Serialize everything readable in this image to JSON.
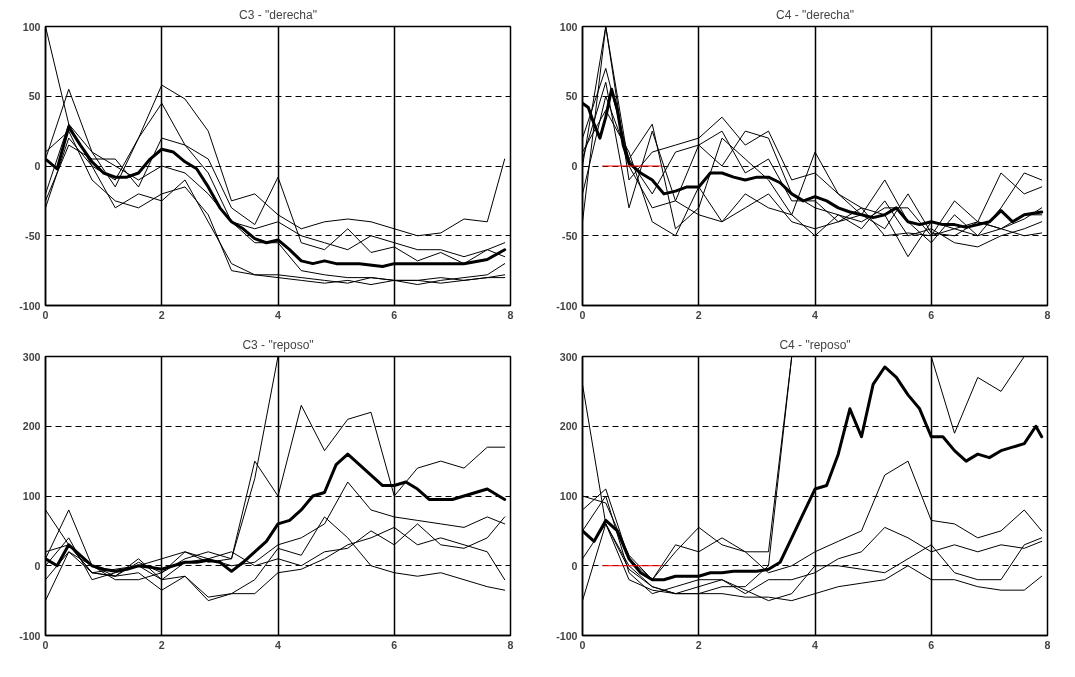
{
  "chart_data": [
    {
      "type": "line",
      "title": "C3 - \"derecha\"",
      "xlim": [
        0,
        8
      ],
      "ylim": [
        -100,
        100
      ],
      "xticks": [
        0,
        2,
        4,
        6,
        8
      ],
      "yticks": [
        -100,
        -50,
        0,
        50,
        100
      ],
      "grid": true,
      "x": [
        0,
        0.4,
        0.8,
        1.2,
        1.6,
        2.0,
        2.4,
        2.8,
        3.2,
        3.6,
        4.0,
        4.4,
        4.8,
        5.2,
        5.6,
        6.0,
        6.4,
        6.8,
        7.2,
        7.6,
        7.9
      ],
      "series": [
        {
          "color": "#000000",
          "x": [
            0,
            0.2,
            0.4,
            0.6,
            0.8,
            1.0,
            1.2,
            1.4,
            1.6,
            1.8,
            2.0,
            2.2,
            2.4,
            2.6,
            2.8,
            3.0,
            3.2,
            3.4,
            3.6,
            3.8,
            4.0,
            4.2,
            4.4,
            4.6,
            4.8,
            5.0,
            5.4,
            5.8,
            6.0,
            6.4,
            6.8,
            7.2,
            7.6,
            7.9
          ],
          "values": [
            5,
            -2,
            28,
            15,
            3,
            -5,
            -8,
            -8,
            -5,
            5,
            12,
            10,
            3,
            -2,
            -15,
            -30,
            -40,
            -45,
            -52,
            -55,
            -53,
            -60,
            -68,
            -70,
            -68,
            -70,
            -70,
            -72,
            -70,
            -70,
            -70,
            -70,
            -67,
            -60
          ]
        },
        {
          "color": "#000000",
          "values": [
            100,
            30,
            10,
            0,
            -10,
            0,
            -5,
            -20,
            -40,
            -45,
            -40,
            -50,
            -55,
            -60,
            -50,
            -55,
            -60,
            -60,
            -65,
            -60,
            -55
          ]
        },
        {
          "color": "#000000",
          "values": [
            5,
            55,
            10,
            -15,
            20,
            58,
            48,
            25,
            -25,
            -20,
            -35,
            -45,
            -40,
            -38,
            -40,
            -45,
            -50,
            -48,
            -38,
            -40,
            5
          ]
        },
        {
          "color": "#000000",
          "values": [
            -30,
            20,
            0,
            -10,
            20,
            45,
            15,
            -5,
            -40,
            -55,
            -55,
            -75,
            -78,
            -80,
            -80,
            -82,
            -82,
            -80,
            -82,
            -80,
            -80
          ]
        },
        {
          "color": "#000000",
          "values": [
            -20,
            30,
            0,
            -30,
            -20,
            -25,
            -10,
            -40,
            -70,
            -78,
            -78,
            -80,
            -82,
            -84,
            -80,
            -82,
            -85,
            -82,
            -80,
            -78,
            -70
          ]
        },
        {
          "color": "#000000",
          "values": [
            10,
            25,
            -10,
            -25,
            -30,
            -20,
            -15,
            -35,
            -75,
            -78,
            -80,
            -82,
            -84,
            -82,
            -85,
            -82,
            -82,
            -84,
            -82,
            -80,
            -78
          ]
        },
        {
          "color": "#000000",
          "values": [
            -25,
            15,
            5,
            5,
            -15,
            20,
            15,
            5,
            -30,
            -42,
            -8,
            -55,
            -60,
            -45,
            -62,
            -58,
            -68,
            -62,
            -70,
            -60,
            -65
          ]
        }
      ]
    },
    {
      "type": "line",
      "title": "C4 - \"derecha\"",
      "xlim": [
        0,
        8
      ],
      "ylim": [
        -100,
        100
      ],
      "xticks": [
        0,
        2,
        4,
        6,
        8
      ],
      "yticks": [
        -100,
        -50,
        0,
        50,
        100
      ],
      "grid": true,
      "x": [
        0,
        0.4,
        0.8,
        1.2,
        1.6,
        2.0,
        2.4,
        2.8,
        3.2,
        3.6,
        4.0,
        4.4,
        4.8,
        5.2,
        5.6,
        6.0,
        6.4,
        6.8,
        7.2,
        7.6,
        7.9
      ],
      "series": [
        {
          "color": "#000000",
          "x": [
            0,
            0.1,
            0.2,
            0.3,
            0.4,
            0.5,
            0.6,
            0.7,
            0.8,
            1.0,
            1.2,
            1.4,
            1.6,
            1.8,
            2.0,
            2.2,
            2.4,
            2.6,
            2.8,
            3.0,
            3.2,
            3.4,
            3.6,
            3.8,
            4.0,
            4.2,
            4.4,
            4.6,
            4.8,
            5.0,
            5.2,
            5.4,
            5.6,
            5.8,
            6.0,
            6.2,
            6.4,
            6.6,
            6.8,
            7.0,
            7.2,
            7.4,
            7.6,
            7.9
          ],
          "values": [
            45,
            42,
            30,
            20,
            35,
            55,
            40,
            15,
            2,
            -5,
            -10,
            -20,
            -18,
            -15,
            -15,
            -5,
            -5,
            -8,
            -10,
            -8,
            -8,
            -12,
            -20,
            -25,
            -22,
            -25,
            -30,
            -33,
            -35,
            -37,
            -35,
            -30,
            -40,
            -42,
            -40,
            -42,
            -42,
            -44,
            -42,
            -40,
            -32,
            -40,
            -35,
            -33
          ]
        },
        {
          "color": "#000000",
          "values": [
            -40,
            100,
            0,
            -30,
            -25,
            -35,
            -40,
            -30,
            -20,
            -40,
            -45,
            -40,
            -30,
            -50,
            -48,
            -50,
            -45,
            -50,
            -45,
            -50,
            -48
          ]
        },
        {
          "color": "#000000",
          "values": [
            20,
            70,
            5,
            30,
            -45,
            -30,
            20,
            5,
            -10,
            -35,
            10,
            -20,
            -30,
            -35,
            -65,
            -40,
            -45,
            -40,
            -5,
            -20,
            -15
          ]
        },
        {
          "color": "#000000",
          "values": [
            0,
            100,
            -10,
            10,
            15,
            20,
            35,
            15,
            25,
            -10,
            -5,
            -20,
            -35,
            -10,
            -40,
            -55,
            -35,
            -50,
            -30,
            -5,
            -10
          ]
        },
        {
          "color": "#000000",
          "values": [
            -20,
            50,
            5,
            -20,
            10,
            15,
            0,
            25,
            20,
            -20,
            -30,
            -35,
            -40,
            -30,
            -30,
            -50,
            -25,
            -40,
            -45,
            -35,
            -35
          ]
        },
        {
          "color": "#000000",
          "values": [
            10,
            40,
            10,
            -40,
            -50,
            -15,
            -40,
            -20,
            -30,
            -35,
            -50,
            -35,
            -45,
            -25,
            -50,
            -45,
            -55,
            -58,
            -50,
            -45,
            -40
          ]
        },
        {
          "color": "#000000",
          "values": [
            5,
            60,
            -30,
            25,
            -25,
            15,
            25,
            -5,
            5,
            -25,
            -25,
            -40,
            -35,
            -45,
            -20,
            -48,
            -50,
            -40,
            -45,
            -38,
            -30
          ]
        },
        {
          "color": "#ff0000",
          "x": [
            0.35,
            1.35
          ],
          "values": [
            0,
            0
          ]
        }
      ]
    },
    {
      "type": "line",
      "title": "C3 - \"reposo\"",
      "xlim": [
        0,
        8
      ],
      "ylim": [
        -100,
        300
      ],
      "xticks": [
        0,
        2,
        4,
        6,
        8
      ],
      "yticks": [
        -100,
        0,
        100,
        200,
        300
      ],
      "grid": true,
      "x": [
        0,
        0.4,
        0.8,
        1.2,
        1.6,
        2.0,
        2.4,
        2.8,
        3.2,
        3.6,
        4.0,
        4.4,
        4.8,
        5.2,
        5.6,
        6.0,
        6.4,
        6.8,
        7.2,
        7.6,
        7.9
      ],
      "series": [
        {
          "color": "#000000",
          "x": [
            0,
            0.2,
            0.4,
            0.6,
            0.8,
            1.0,
            1.2,
            1.4,
            1.6,
            1.8,
            2.0,
            2.2,
            2.4,
            2.6,
            2.8,
            3.0,
            3.2,
            3.4,
            3.6,
            3.8,
            4.0,
            4.2,
            4.4,
            4.6,
            4.8,
            5.0,
            5.2,
            5.4,
            5.6,
            5.8,
            6.0,
            6.2,
            6.4,
            6.6,
            6.8,
            7.0,
            7.2,
            7.4,
            7.6,
            7.9
          ],
          "values": [
            10,
            0,
            30,
            15,
            0,
            -5,
            -8,
            -5,
            0,
            -2,
            -5,
            0,
            5,
            5,
            8,
            5,
            -8,
            5,
            20,
            35,
            60,
            65,
            80,
            100,
            105,
            145,
            160,
            145,
            130,
            115,
            115,
            120,
            110,
            95,
            95,
            95,
            100,
            105,
            110,
            95
          ]
        },
        {
          "color": "#000000",
          "values": [
            80,
            30,
            -10,
            -5,
            0,
            10,
            20,
            5,
            10,
            125,
            300,
            null,
            null,
            null,
            null,
            null,
            null,
            null,
            null,
            null,
            null
          ]
        },
        {
          "color": "#000000",
          "values": [
            10,
            80,
            0,
            -15,
            5,
            -10,
            10,
            20,
            10,
            150,
            100,
            230,
            165,
            210,
            220,
            100,
            140,
            150,
            140,
            170,
            170
          ]
        },
        {
          "color": "#000000",
          "values": [
            -50,
            20,
            -10,
            -15,
            10,
            -20,
            5,
            10,
            0,
            5,
            30,
            40,
            60,
            120,
            80,
            70,
            65,
            60,
            55,
            70,
            60
          ]
        },
        {
          "color": "#000000",
          "values": [
            0,
            40,
            -20,
            -10,
            0,
            -20,
            -15,
            -50,
            -40,
            -40,
            -10,
            -5,
            10,
            30,
            40,
            55,
            30,
            40,
            30,
            20,
            -20
          ]
        },
        {
          "color": "#000000",
          "values": [
            20,
            30,
            -10,
            -15,
            -10,
            -35,
            -15,
            -45,
            -40,
            -20,
            25,
            15,
            70,
            40,
            0,
            -10,
            -15,
            -10,
            -20,
            -30,
            -35
          ]
        },
        {
          "color": "#000000",
          "values": [
            -20,
            20,
            0,
            -20,
            -20,
            -10,
            20,
            10,
            20,
            0,
            10,
            0,
            20,
            25,
            50,
            30,
            60,
            30,
            25,
            40,
            70
          ]
        }
      ]
    },
    {
      "type": "line",
      "title": "C4 - \"reposo\"",
      "xlim": [
        0,
        8
      ],
      "ylim": [
        -100,
        300
      ],
      "xticks": [
        0,
        2,
        4,
        6,
        8
      ],
      "yticks": [
        -100,
        0,
        100,
        200,
        300
      ],
      "grid": true,
      "x": [
        0,
        0.4,
        0.8,
        1.2,
        1.6,
        2.0,
        2.4,
        2.8,
        3.2,
        3.6,
        4.0,
        4.4,
        4.8,
        5.2,
        5.6,
        6.0,
        6.4,
        6.8,
        7.2,
        7.6,
        7.9
      ],
      "series": [
        {
          "color": "#000000",
          "x": [
            0,
            0.2,
            0.4,
            0.6,
            0.8,
            1.0,
            1.2,
            1.4,
            1.6,
            1.8,
            2.0,
            2.2,
            2.4,
            2.6,
            2.8,
            3.0,
            3.2,
            3.4,
            3.6,
            3.8,
            4.0,
            4.2,
            4.4,
            4.6,
            4.8,
            5.0,
            5.2,
            5.4,
            5.6,
            5.8,
            6.0,
            6.2,
            6.4,
            6.6,
            6.8,
            7.0,
            7.2,
            7.4,
            7.6,
            7.8,
            7.9
          ],
          "values": [
            50,
            35,
            65,
            50,
            10,
            -10,
            -20,
            -20,
            -15,
            -15,
            -15,
            -10,
            -10,
            -8,
            -8,
            -8,
            -5,
            5,
            40,
            75,
            110,
            115,
            160,
            225,
            185,
            260,
            285,
            270,
            245,
            225,
            185,
            185,
            165,
            150,
            160,
            155,
            165,
            170,
            175,
            200,
            185
          ]
        },
        {
          "color": "#000000",
          "values": [
            260,
            60,
            0,
            -30,
            -40,
            -40,
            -30,
            -30,
            0,
            300,
            null,
            null,
            null,
            null,
            null,
            300,
            190,
            270,
            250,
            300,
            null
          ]
        },
        {
          "color": "#000000",
          "values": [
            80,
            110,
            10,
            -20,
            20,
            55,
            30,
            20,
            20,
            300,
            null,
            null,
            null,
            null,
            null,
            null,
            null,
            null,
            null,
            null,
            null
          ]
        },
        {
          "color": "#000000",
          "values": [
            100,
            90,
            15,
            -20,
            30,
            20,
            40,
            20,
            -10,
            0,
            20,
            35,
            50,
            130,
            150,
            65,
            60,
            40,
            50,
            80,
            50
          ]
        },
        {
          "color": "#000000",
          "values": [
            -50,
            60,
            -5,
            -30,
            -40,
            -30,
            -20,
            -40,
            -20,
            -20,
            -10,
            10,
            20,
            55,
            40,
            20,
            30,
            20,
            30,
            25,
            35
          ]
        },
        {
          "color": "#000000",
          "values": [
            50,
            100,
            -10,
            -40,
            -30,
            -20,
            -20,
            -35,
            -50,
            -40,
            0,
            0,
            -5,
            -10,
            10,
            30,
            -10,
            -20,
            -20,
            30,
            40
          ]
        },
        {
          "color": "#000000",
          "values": [
            10,
            60,
            -20,
            -35,
            -40,
            -40,
            -40,
            -45,
            -45,
            -50,
            -40,
            -30,
            -25,
            -20,
            0,
            -20,
            -20,
            -30,
            -35,
            -35,
            -15
          ]
        },
        {
          "color": "#ff0000",
          "x": [
            0.35,
            1.35
          ],
          "values": [
            0,
            0
          ]
        }
      ]
    }
  ]
}
